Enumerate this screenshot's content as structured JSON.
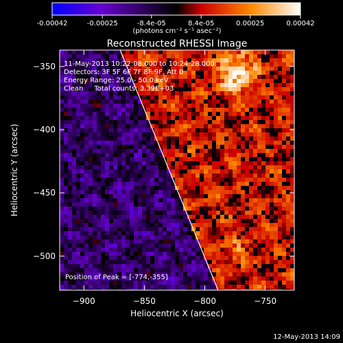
{
  "chart_data": {
    "type": "heatmap",
    "title": "Reconstructed RHESSI Image",
    "xlabel": "Heliocentric X (arcsec)",
    "ylabel": "Heliocentric Y (arcsec)",
    "xlim": [
      -920,
      -726
    ],
    "ylim": [
      -527,
      -337
    ],
    "xticks": [
      -900,
      -850,
      -800,
      -750
    ],
    "yticks": [
      -350,
      -400,
      -450,
      -500
    ],
    "colorbar": {
      "ticks": [
        "-0.00042",
        "-0.00025",
        "-8.4e-05",
        "8.4e-05",
        "0.00025",
        "0.00042"
      ],
      "tick_values": [
        -0.00042,
        -0.00025,
        -8.4e-05,
        8.4e-05,
        0.00025,
        0.00042
      ],
      "range": [
        -0.00042,
        0.00042
      ],
      "unit_label": "(photons cm⁻² s⁻¹ asec⁻²)",
      "colors": [
        "#0000ff",
        "#6600cc",
        "#000000",
        "#cc0000",
        "#ff8800",
        "#ffffff"
      ]
    },
    "annotations": [
      "11-May-2013 10:22:08.000 to 10:24:28.000",
      "Detectors: 3F 5F 6F 7F 8F 9F, Att 0",
      "Energy Range: 25.0 - 50.0 keV",
      "Clean     Total counts: 3.39E+03"
    ],
    "peak_label": "Position of Peak = [-774,-355]",
    "peak": [
      -774,
      -355
    ],
    "limb_line": [
      [
        -870,
        -337
      ],
      [
        -789,
        -527
      ]
    ]
  },
  "footer_timestamp": "12-May-2013 14:09"
}
